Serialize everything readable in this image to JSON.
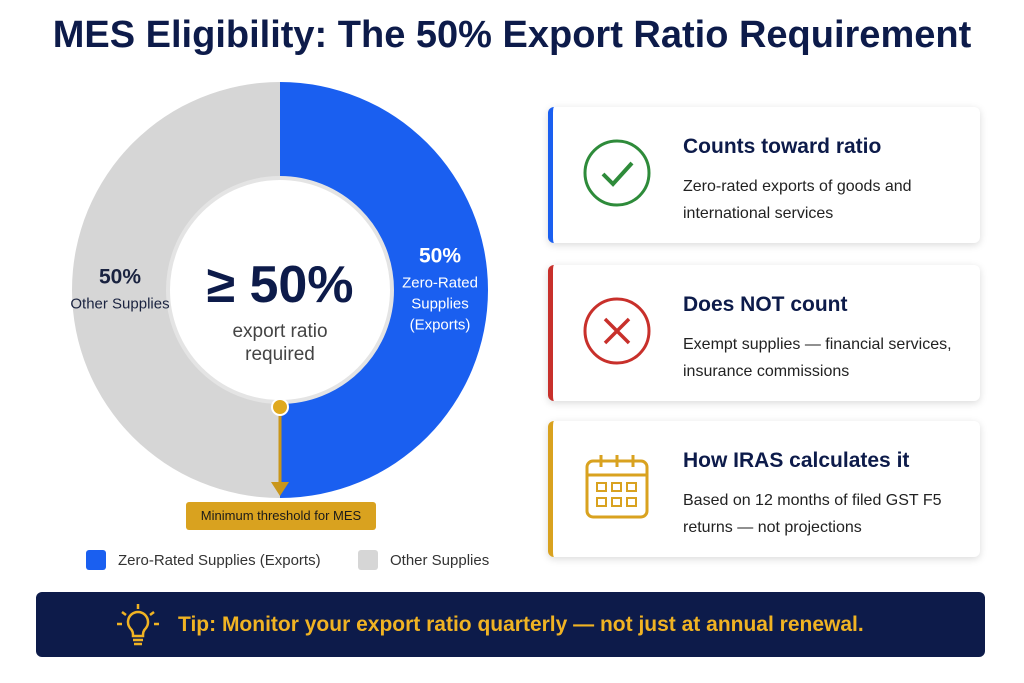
{
  "chart_data": {
    "type": "pie",
    "title": "MES Eligibility: The 50% Export Ratio Requirement",
    "categories": [
      "Zero-Rated Supplies (Exports)",
      "Other Supplies"
    ],
    "values": [
      50,
      50
    ],
    "value_labels": [
      "50%",
      "50%"
    ],
    "colors": [
      "#1a5ff0",
      "#d6d6d6"
    ],
    "legend": "bottom",
    "annotations": {
      "center_value": "≥ 50%",
      "center_text": "export ratio required",
      "threshold": "Minimum threshold for MES"
    }
  },
  "cards": [
    {
      "title": "Counts toward ratio",
      "text": "Zero-rated exports of goods and international services"
    },
    {
      "title": "Does NOT count",
      "text": "Exempt supplies — financial services, insurance commissions"
    },
    {
      "title": "How IRAS calculates it",
      "text": "Based on 12 months of filed GST F5 returns — not projections"
    }
  ],
  "tip": "Tip: Monitor your export ratio quarterly — not just at annual renewal."
}
